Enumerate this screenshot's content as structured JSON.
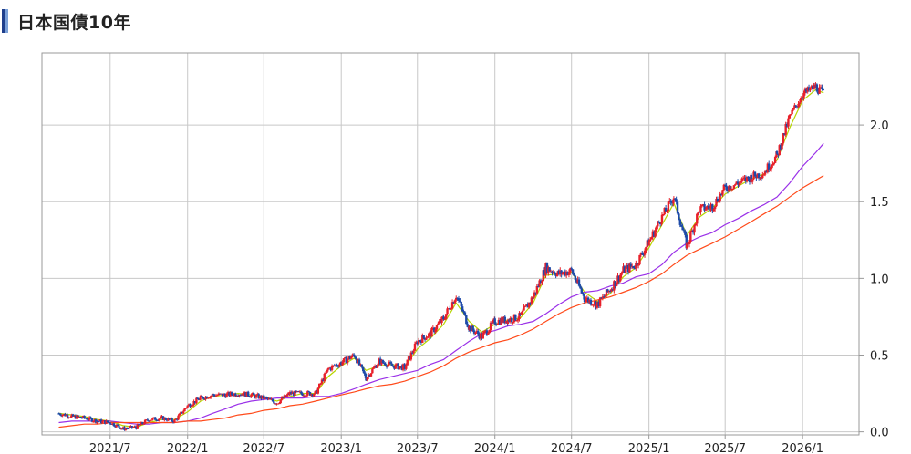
{
  "header": {
    "title": "日本国債10年"
  },
  "chart_data": {
    "type": "candlestick",
    "title": "日本国債10年",
    "xlabel": "",
    "ylabel": "",
    "ylim": [
      -0.02,
      2.47
    ],
    "y_ticks": [
      "0.0",
      "0.5",
      "1.0",
      "1.5",
      "2.0"
    ],
    "x_ticks": [
      "2021/7",
      "2022/1",
      "2022/7",
      "2023/1",
      "2023/7",
      "2024/1",
      "2024/7",
      "2025/1",
      "2025/7",
      "2026/1"
    ],
    "x_range": [
      "2021-01-20",
      "2026-05-15"
    ],
    "grid": true,
    "legend": "none",
    "colors": {
      "up": "#e8202a",
      "down": "#1d4aa8",
      "ma_short": "#b6d400",
      "ma_mid": "#9a30e8",
      "ma_long": "#ff4a1a",
      "grid": "#c8c8c8",
      "frame": "#999999"
    },
    "series": [
      {
        "kind": "price",
        "x": [
          "2021-03-01",
          "2021-04-01",
          "2021-05-01",
          "2021-06-01",
          "2021-07-01",
          "2021-08-01",
          "2021-09-01",
          "2021-10-01",
          "2021-11-01",
          "2021-12-01",
          "2022-01-01",
          "2022-02-01",
          "2022-03-01",
          "2022-04-01",
          "2022-05-01",
          "2022-06-01",
          "2022-07-01",
          "2022-08-01",
          "2022-09-01",
          "2022-10-01",
          "2022-11-01",
          "2022-12-01",
          "2023-01-01",
          "2023-02-01",
          "2023-03-01",
          "2023-04-01",
          "2023-05-01",
          "2023-06-01",
          "2023-07-01",
          "2023-08-01",
          "2023-09-01",
          "2023-10-01",
          "2023-11-01",
          "2023-12-01",
          "2024-01-01",
          "2024-02-01",
          "2024-03-01",
          "2024-04-01",
          "2024-05-01",
          "2024-06-01",
          "2024-07-01",
          "2024-08-01",
          "2024-09-01",
          "2024-10-01",
          "2024-11-01",
          "2024-12-01",
          "2025-01-01",
          "2025-02-01",
          "2025-03-01",
          "2025-04-01",
          "2025-05-01",
          "2025-06-01",
          "2025-07-01",
          "2025-08-01",
          "2025-09-01",
          "2025-10-01",
          "2025-11-01",
          "2025-12-01",
          "2026-01-01",
          "2026-02-01",
          "2026-02-20"
        ],
        "values": [
          0.12,
          0.1,
          0.09,
          0.07,
          0.06,
          0.02,
          0.03,
          0.08,
          0.09,
          0.07,
          0.17,
          0.22,
          0.24,
          0.24,
          0.25,
          0.24,
          0.22,
          0.19,
          0.25,
          0.25,
          0.25,
          0.41,
          0.45,
          0.5,
          0.35,
          0.46,
          0.43,
          0.42,
          0.59,
          0.64,
          0.74,
          0.89,
          0.68,
          0.62,
          0.72,
          0.73,
          0.75,
          0.88,
          1.07,
          1.03,
          1.05,
          0.87,
          0.83,
          0.93,
          1.05,
          1.09,
          1.24,
          1.4,
          1.53,
          1.21,
          1.45,
          1.47,
          1.59,
          1.62,
          1.66,
          1.69,
          1.8,
          2.05,
          2.2,
          2.25,
          2.2
        ]
      },
      {
        "kind": "moving_average_short",
        "values": [
          0.12,
          0.11,
          0.1,
          0.08,
          0.07,
          0.04,
          0.03,
          0.06,
          0.08,
          0.08,
          0.13,
          0.2,
          0.23,
          0.24,
          0.25,
          0.24,
          0.23,
          0.2,
          0.23,
          0.25,
          0.25,
          0.36,
          0.43,
          0.48,
          0.4,
          0.43,
          0.44,
          0.42,
          0.54,
          0.61,
          0.7,
          0.84,
          0.72,
          0.65,
          0.7,
          0.73,
          0.74,
          0.84,
          1.02,
          1.03,
          1.04,
          0.91,
          0.85,
          0.9,
          1.01,
          1.07,
          1.2,
          1.35,
          1.49,
          1.28,
          1.4,
          1.46,
          1.55,
          1.6,
          1.65,
          1.68,
          1.77,
          1.98,
          2.16,
          2.23,
          2.21
        ]
      },
      {
        "kind": "moving_average_mid",
        "values": [
          0.06,
          0.07,
          0.07,
          0.07,
          0.07,
          0.06,
          0.05,
          0.05,
          0.06,
          0.06,
          0.07,
          0.09,
          0.12,
          0.15,
          0.18,
          0.2,
          0.21,
          0.22,
          0.22,
          0.22,
          0.23,
          0.23,
          0.25,
          0.28,
          0.31,
          0.34,
          0.36,
          0.38,
          0.4,
          0.44,
          0.47,
          0.53,
          0.59,
          0.64,
          0.66,
          0.69,
          0.7,
          0.72,
          0.77,
          0.83,
          0.88,
          0.91,
          0.92,
          0.95,
          0.97,
          1.01,
          1.03,
          1.09,
          1.17,
          1.23,
          1.27,
          1.3,
          1.35,
          1.39,
          1.44,
          1.48,
          1.53,
          1.62,
          1.73,
          1.82,
          1.88
        ]
      },
      {
        "kind": "moving_average_long",
        "values": [
          0.03,
          0.04,
          0.05,
          0.05,
          0.06,
          0.06,
          0.06,
          0.06,
          0.06,
          0.06,
          0.07,
          0.07,
          0.08,
          0.09,
          0.11,
          0.12,
          0.14,
          0.15,
          0.17,
          0.18,
          0.2,
          0.22,
          0.24,
          0.26,
          0.28,
          0.3,
          0.31,
          0.33,
          0.36,
          0.39,
          0.43,
          0.48,
          0.52,
          0.55,
          0.58,
          0.6,
          0.63,
          0.67,
          0.72,
          0.77,
          0.81,
          0.84,
          0.86,
          0.88,
          0.91,
          0.94,
          0.98,
          1.03,
          1.09,
          1.15,
          1.19,
          1.23,
          1.27,
          1.32,
          1.37,
          1.42,
          1.47,
          1.53,
          1.59,
          1.64,
          1.67
        ]
      }
    ]
  }
}
